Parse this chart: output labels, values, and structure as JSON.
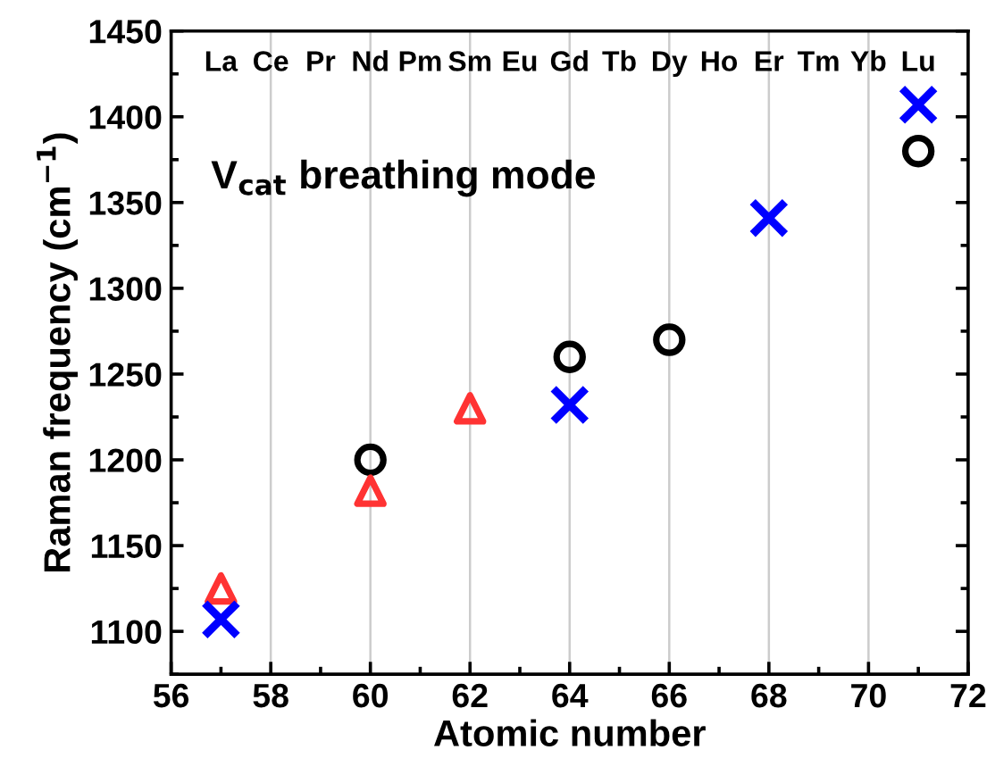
{
  "chart_data": {
    "type": "scatter",
    "xlabel": "Atomic number",
    "ylabel": "Raman frequency (cm$^{−1}$)",
    "annotations": [
      "V$_{cat}$ breathing mode",
      "La",
      "Ce",
      "Pr",
      "Nd",
      "Pm",
      "Sm",
      "Eu",
      "Gd",
      "Tb",
      "Dy",
      "Ho",
      "Er",
      "Tm",
      "Yb",
      "Lu"
    ],
    "series": [
      {
        "color": "#000000",
        "marker": "circle",
        "x": [
          60,
          64,
          66,
          71
        ],
        "values": [
          1200,
          1260,
          1270,
          1380
        ]
      },
      {
        "color": "#ff3333",
        "marker": "triangle",
        "x": [
          57,
          60,
          62
        ],
        "values": [
          1125,
          1182,
          1230
        ]
      },
      {
        "color": "#0000ff",
        "marker": "cross",
        "x": [
          57,
          64,
          68,
          71
        ],
        "values": [
          1107,
          1232,
          1341,
          1407
        ]
      }
    ],
    "xlim": [
      56,
      72
    ],
    "xticks": [
      56,
      {
        "value": 57,
        "label": null
      },
      58,
      {
        "value": 59,
        "label": null
      },
      60,
      {
        "value": 61,
        "label": null
      },
      62,
      {
        "value": 63,
        "label": null
      },
      64,
      {
        "value": 65,
        "label": null
      },
      66,
      {
        "value": 67,
        "label": null
      },
      68,
      {
        "value": 69,
        "label": null
      },
      70,
      {
        "value": 71,
        "label": null
      },
      72
    ],
    "ylim": [
      1075,
      1450
    ],
    "yticks": [
      {
        "value": 1075,
        "label": null
      },
      1100,
      {
        "value": 1125,
        "label": null
      },
      1150,
      {
        "value": 1175,
        "label": null
      },
      1200,
      {
        "value": 1225,
        "label": null
      },
      1250,
      {
        "value": 1275,
        "label": null
      },
      1300,
      {
        "value": 1325,
        "label": null
      },
      1350,
      {
        "value": 1375,
        "label": null
      },
      1400,
      {
        "value": 1425,
        "label": null
      },
      1450
    ],
    "grid": "x"
  }
}
